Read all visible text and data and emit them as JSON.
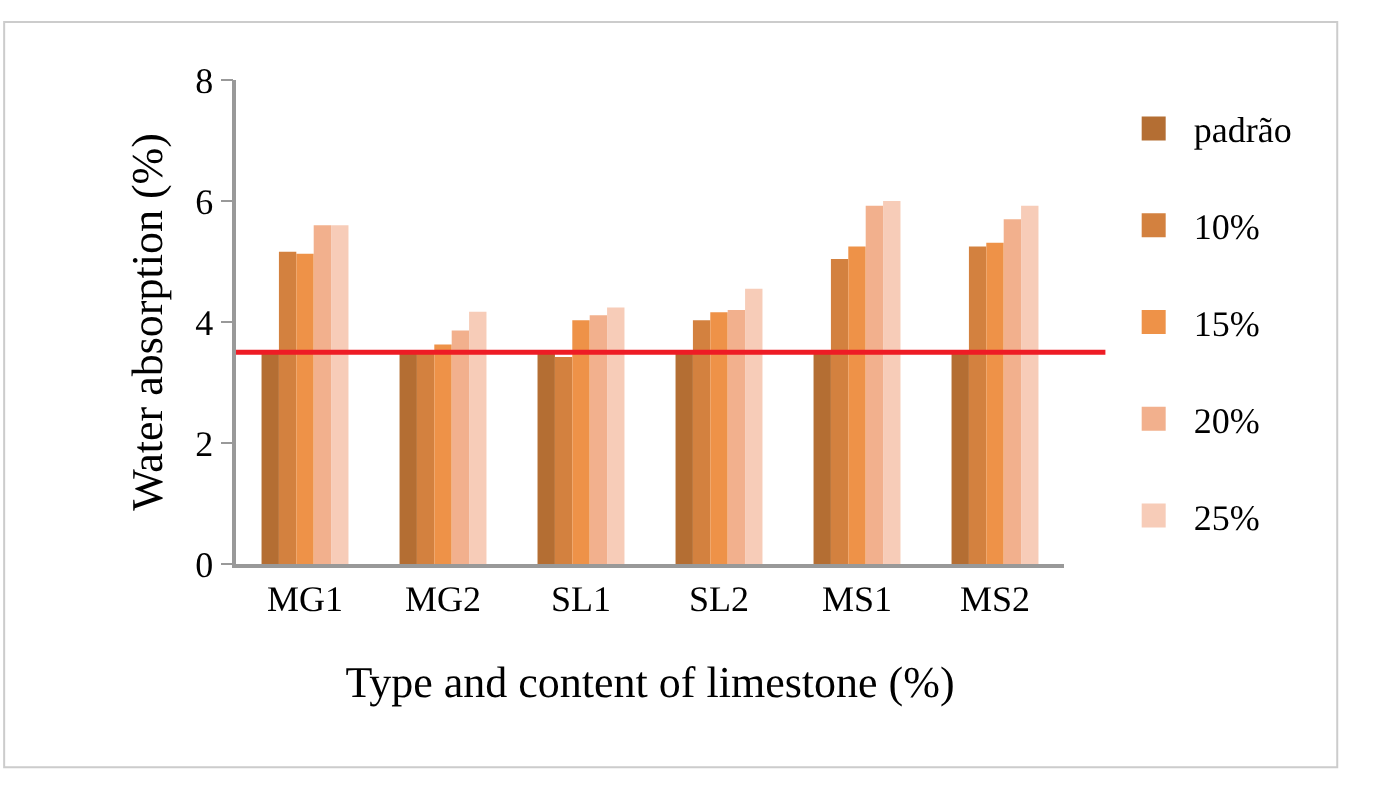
{
  "chart_data": {
    "type": "bar",
    "xlabel": "Type and content of limestone (%)",
    "ylabel": "Water absorption (%)",
    "categories": [
      "MG1",
      "MG2",
      "SL1",
      "SL2",
      "MS1",
      "MS2"
    ],
    "series": [
      {
        "name": "padrão",
        "color": "#b46e33",
        "values": [
          3.5,
          3.5,
          3.5,
          3.5,
          3.5,
          3.5
        ]
      },
      {
        "name": "10%",
        "color": "#d3813f",
        "values": [
          5.16,
          3.5,
          3.42,
          4.03,
          5.04,
          5.25
        ]
      },
      {
        "name": "15%",
        "color": "#ee9248",
        "values": [
          5.13,
          3.63,
          4.03,
          4.16,
          5.25,
          5.31
        ]
      },
      {
        "name": "20%",
        "color": "#f2b08d",
        "values": [
          5.6,
          3.86,
          4.11,
          4.2,
          5.92,
          5.7
        ]
      },
      {
        "name": "25%",
        "color": "#f7ccb8",
        "values": [
          5.6,
          4.17,
          4.24,
          4.55,
          6.0,
          5.92
        ]
      }
    ],
    "ylim": [
      0,
      8
    ],
    "yticks": [
      0,
      2,
      4,
      6,
      8
    ],
    "legend": "right",
    "ref_lines": [
      {
        "axis": "y",
        "value": 3.5,
        "color": "#ee1c25"
      }
    ]
  }
}
